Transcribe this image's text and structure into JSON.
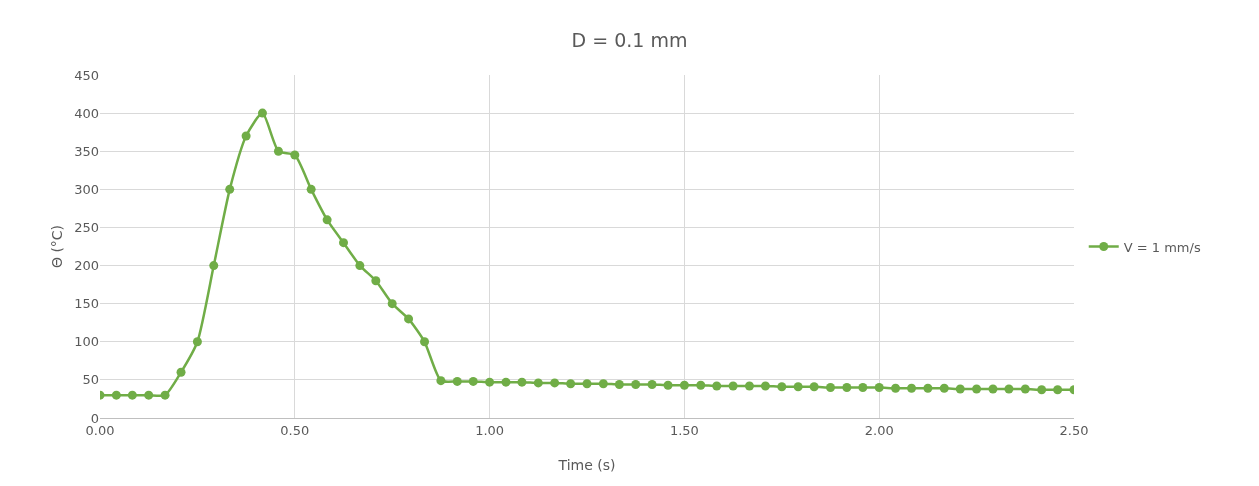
{
  "chart_data": {
    "type": "line",
    "title": "D = 0.1 mm",
    "xlabel": "Time (s)",
    "ylabel": "Θ (°C)",
    "x": [
      0,
      0.042,
      0.083,
      0.125,
      0.167,
      0.208,
      0.25,
      0.292,
      0.333,
      0.375,
      0.417,
      0.458,
      0.5,
      0.542,
      0.583,
      0.625,
      0.667,
      0.708,
      0.75,
      0.792,
      0.833,
      0.875,
      0.917,
      0.958,
      1,
      1.042,
      1.083,
      1.125,
      1.167,
      1.208,
      1.25,
      1.292,
      1.333,
      1.375,
      1.417,
      1.458,
      1.5,
      1.542,
      1.583,
      1.625,
      1.667,
      1.708,
      1.75,
      1.792,
      1.833,
      1.875,
      1.917,
      1.958,
      2,
      2.042,
      2.083,
      2.125,
      2.167,
      2.208,
      2.25,
      2.292,
      2.333,
      2.375,
      2.417,
      2.458,
      2.5
    ],
    "series": [
      {
        "name": "V = 1 mm/s",
        "color": "#70ad47",
        "values": [
          30,
          30,
          30,
          30,
          30,
          60,
          100,
          200,
          300,
          370,
          400,
          350,
          345,
          300,
          260,
          230,
          200,
          180,
          150,
          130,
          100,
          49,
          48,
          48,
          47,
          47,
          47,
          46,
          46,
          45,
          45,
          45,
          44,
          44,
          44,
          43,
          43,
          43,
          42,
          42,
          42,
          42,
          41,
          41,
          41,
          40,
          40,
          40,
          40,
          39,
          39,
          39,
          39,
          38,
          38,
          38,
          38,
          38,
          37,
          37,
          37
        ]
      }
    ],
    "xlim": [
      0,
      2.5
    ],
    "xticks": [
      {
        "value": 0,
        "label": "0.00"
      },
      {
        "value": 0.5,
        "label": "0.50"
      },
      {
        "value": 1,
        "label": "1.00"
      },
      {
        "value": 1.5,
        "label": "1.50"
      },
      {
        "value": 2,
        "label": "2.00"
      },
      {
        "value": 2.5,
        "label": "2.50"
      }
    ],
    "ylim": [
      0,
      450
    ],
    "yticks": [
      0,
      50,
      100,
      150,
      200,
      250,
      300,
      350,
      400,
      450
    ],
    "grid": true,
    "legend": "right",
    "marker": "circle",
    "line_style": "solid"
  }
}
